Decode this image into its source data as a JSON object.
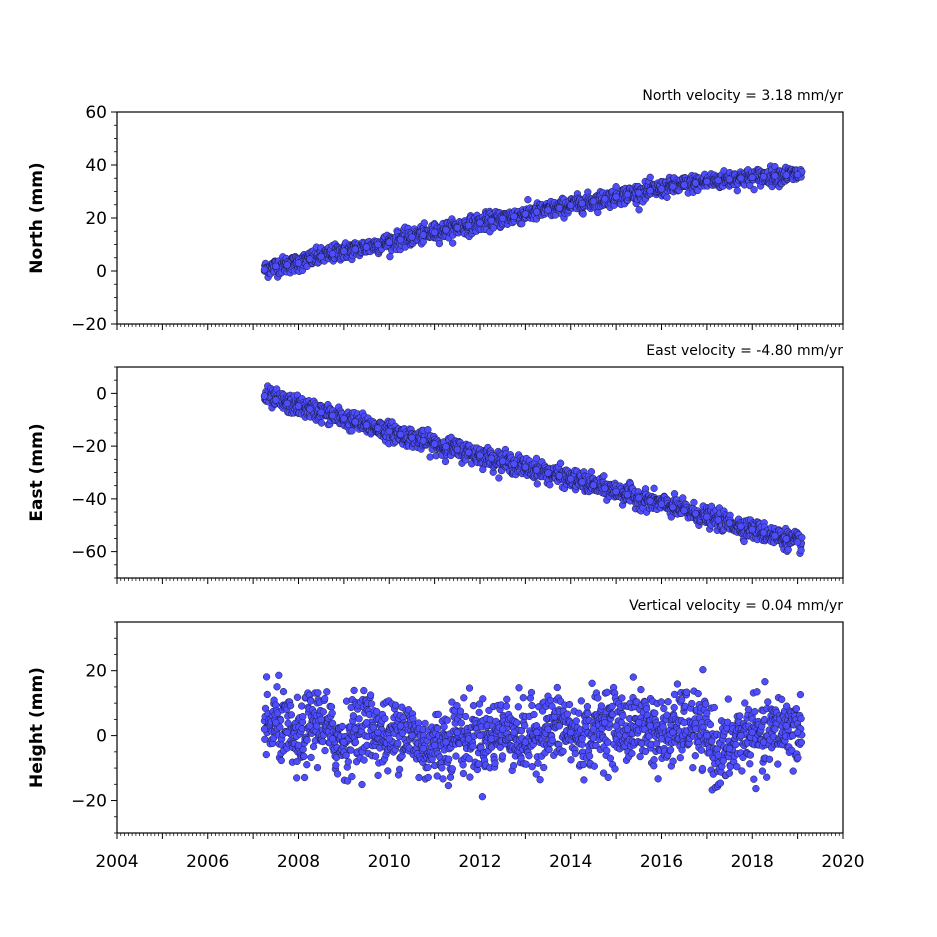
{
  "chart_data": [
    {
      "type": "scatter",
      "title": "North velocity = 3.18 mm/yr",
      "ylabel": "North (mm)",
      "xlabel": "",
      "xlim": [
        2004,
        2020
      ],
      "ylim": [
        -20,
        60
      ],
      "yticks": [
        "60",
        "40",
        "20",
        "0",
        "−20"
      ],
      "ytick_values": [
        60,
        40,
        20,
        0,
        -20
      ],
      "marker_color": "#4d4dff",
      "edge_color": "#1a1a40",
      "series": [
        {
          "x": [
            2007.25,
            2007.5,
            2007.75,
            2008.0,
            2008.25,
            2008.5,
            2008.75,
            2009.0,
            2009.25,
            2009.5,
            2009.75,
            2010.0,
            2010.25,
            2010.5,
            2010.75,
            2011.0,
            2011.25,
            2011.5,
            2011.75,
            2012.0,
            2012.25,
            2012.5,
            2012.75,
            2013.0,
            2013.25,
            2013.5,
            2013.75,
            2014.0,
            2014.25,
            2014.5,
            2014.75,
            2015.0,
            2015.25,
            2015.5,
            2015.75,
            2016.0,
            2016.25,
            2016.5,
            2016.75,
            2017.0,
            2017.25,
            2017.5,
            2017.75,
            2018.0,
            2018.25,
            2018.5,
            2018.75,
            2019.0
          ],
          "y": [
            0.5,
            1.8,
            2.3,
            3.0,
            4.5,
            5.4,
            6.5,
            7.5,
            8.2,
            9.0,
            10.0,
            10.9,
            11.8,
            12.8,
            13.6,
            14.6,
            15.5,
            16.3,
            17.2,
            18.2,
            19.0,
            19.8,
            20.6,
            21.5,
            22.3,
            23.0,
            23.8,
            24.8,
            25.5,
            26.3,
            27.2,
            28.0,
            28.9,
            29.5,
            30.3,
            31.0,
            31.8,
            32.5,
            33.2,
            33.8,
            34.2,
            34.6,
            35.0,
            35.3,
            35.6,
            35.9,
            36.2,
            36.4
          ]
        }
      ]
    },
    {
      "type": "scatter",
      "title": "East velocity = -4.80 mm/yr",
      "ylabel": "East (mm)",
      "xlabel": "",
      "xlim": [
        2004,
        2020
      ],
      "ylim": [
        -70,
        10
      ],
      "yticks": [
        "0",
        "−20",
        "−40",
        "−60"
      ],
      "ytick_values": [
        0,
        -20,
        -40,
        -60
      ],
      "marker_color": "#4d4dff",
      "edge_color": "#1a1a40",
      "series": [
        {
          "x": [
            2007.25,
            2007.5,
            2007.75,
            2008.0,
            2008.25,
            2008.5,
            2008.75,
            2009.0,
            2009.25,
            2009.5,
            2009.75,
            2010.0,
            2010.25,
            2010.5,
            2010.75,
            2011.0,
            2011.25,
            2011.5,
            2011.75,
            2012.0,
            2012.25,
            2012.5,
            2012.75,
            2013.0,
            2013.25,
            2013.5,
            2013.75,
            2014.0,
            2014.25,
            2014.5,
            2014.75,
            2015.0,
            2015.25,
            2015.5,
            2015.75,
            2016.0,
            2016.25,
            2016.5,
            2016.75,
            2017.0,
            2017.25,
            2017.5,
            2017.75,
            2018.0,
            2018.25,
            2018.5,
            2018.75,
            2019.0
          ],
          "y": [
            -1.0,
            -2.5,
            -3.8,
            -4.8,
            -6.0,
            -7.2,
            -8.4,
            -9.6,
            -10.8,
            -12.0,
            -13.2,
            -14.4,
            -15.6,
            -16.8,
            -18.0,
            -19.2,
            -20.2,
            -21.3,
            -22.4,
            -23.5,
            -24.6,
            -25.7,
            -26.8,
            -28.0,
            -29.0,
            -30.2,
            -31.3,
            -32.4,
            -33.6,
            -34.8,
            -36.0,
            -37.2,
            -38.4,
            -39.6,
            -40.8,
            -42.0,
            -43.2,
            -44.4,
            -45.6,
            -46.8,
            -48.0,
            -49.2,
            -50.4,
            -51.6,
            -52.8,
            -54.0,
            -55.2,
            -56.4
          ]
        }
      ]
    },
    {
      "type": "scatter",
      "title": "Vertical velocity = 0.04 mm/yr",
      "ylabel": "Height (mm)",
      "xlabel": "",
      "xlim": [
        2004,
        2020
      ],
      "ylim": [
        -30,
        35
      ],
      "yticks": [
        "20",
        "0",
        "−20"
      ],
      "ytick_values": [
        20,
        0,
        -20
      ],
      "xticks": [
        "2004",
        "2006",
        "2008",
        "2010",
        "2012",
        "2014",
        "2016",
        "2018",
        "2020"
      ],
      "xtick_values": [
        2004,
        2006,
        2008,
        2010,
        2012,
        2014,
        2016,
        2018,
        2020
      ],
      "marker_color": "#4d4dff",
      "edge_color": "#1a1a40",
      "series": [
        {
          "x": [
            2007.25,
            2007.5,
            2007.75,
            2008.0,
            2008.25,
            2008.5,
            2008.75,
            2009.0,
            2009.25,
            2009.5,
            2009.75,
            2010.0,
            2010.25,
            2010.5,
            2010.75,
            2011.0,
            2011.25,
            2011.5,
            2011.75,
            2012.0,
            2012.25,
            2012.5,
            2012.75,
            2013.0,
            2013.25,
            2013.5,
            2013.75,
            2014.0,
            2014.25,
            2014.5,
            2014.75,
            2015.0,
            2015.25,
            2015.5,
            2015.75,
            2016.0,
            2016.25,
            2016.5,
            2016.75,
            2017.0,
            2017.25,
            2017.5,
            2017.75,
            2018.0,
            2018.25,
            2018.5,
            2018.75,
            2019.0
          ],
          "y": [
            2,
            4,
            1,
            -3,
            3,
            5,
            -1,
            -2,
            2,
            4,
            1,
            -1,
            3,
            0,
            -4,
            -3,
            -2,
            1,
            -1,
            0,
            -1,
            2,
            1,
            -2,
            1,
            2,
            3,
            1,
            -1,
            2,
            4,
            3,
            2,
            4,
            3,
            -1,
            1,
            4,
            2,
            0,
            -6,
            -4,
            0,
            1,
            -2,
            2,
            3,
            1
          ]
        }
      ]
    }
  ]
}
